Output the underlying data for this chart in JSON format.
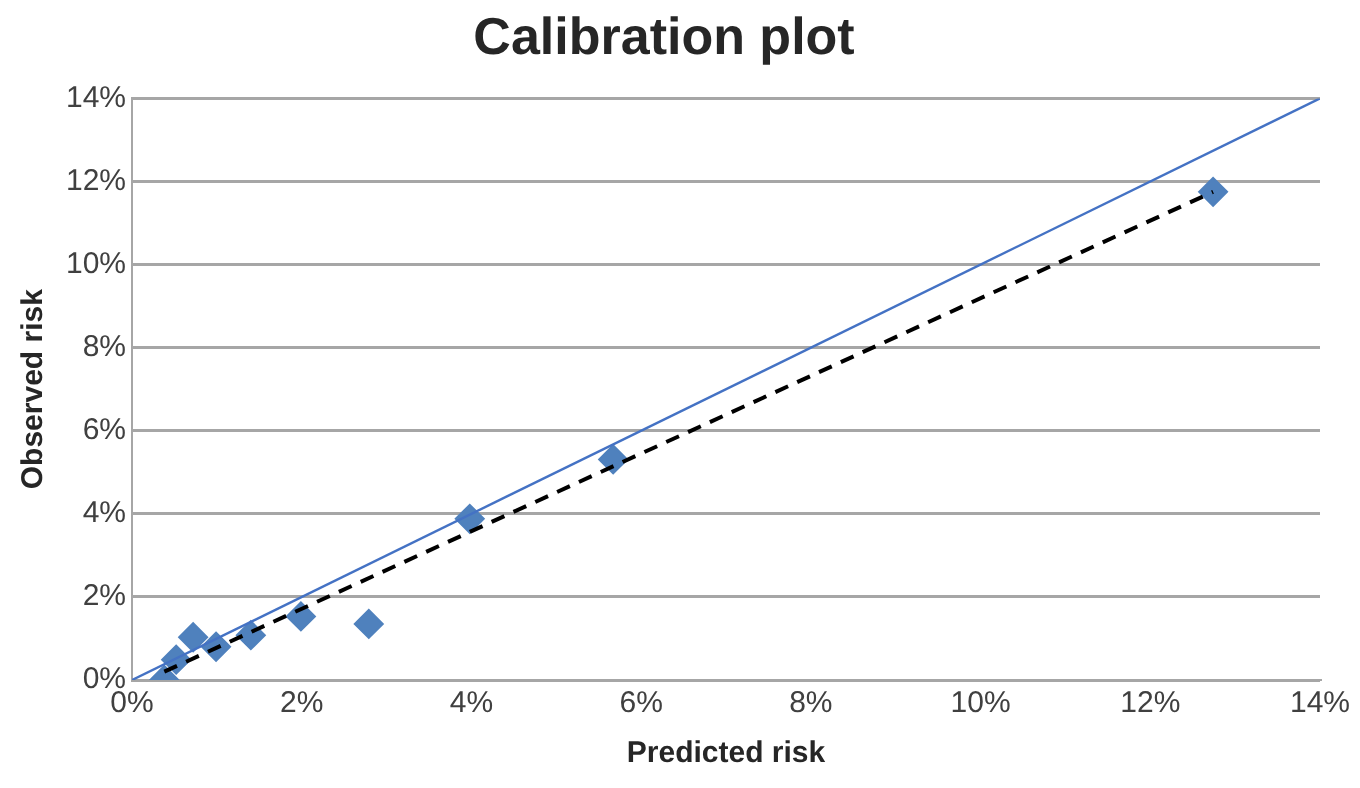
{
  "chart_data": {
    "type": "scatter",
    "title": "Calibration plot",
    "xlabel": "Predicted risk",
    "ylabel": "Observed risk",
    "xlim": [
      0,
      14
    ],
    "ylim": [
      0,
      14
    ],
    "xticks": [
      {
        "value": 0,
        "label": "0%"
      },
      {
        "value": 2,
        "label": "2%"
      },
      {
        "value": 4,
        "label": "4%"
      },
      {
        "value": 6,
        "label": "6%"
      },
      {
        "value": 8,
        "label": "8%"
      },
      {
        "value": 10,
        "label": "10%"
      },
      {
        "value": 12,
        "label": "12%"
      },
      {
        "value": 14,
        "label": "14%"
      }
    ],
    "yticks": [
      {
        "value": 0,
        "label": "0%"
      },
      {
        "value": 2,
        "label": "2%"
      },
      {
        "value": 4,
        "label": "4%"
      },
      {
        "value": 6,
        "label": "6%"
      },
      {
        "value": 8,
        "label": "8%"
      },
      {
        "value": 10,
        "label": "10%"
      },
      {
        "value": 12,
        "label": "12%"
      },
      {
        "value": 14,
        "label": "14%"
      }
    ],
    "grid": "y",
    "legend": false,
    "marker": "diamond",
    "series": [
      {
        "color": "#4f81bd",
        "x": [
          0.38,
          0.52,
          0.72,
          0.99,
          1.4,
          1.99,
          2.79,
          3.98,
          5.67,
          12.74
        ],
        "values": [
          0,
          0.49,
          1.03,
          0.8,
          1.08,
          1.53,
          1.35,
          3.88,
          5.31,
          11.75
        ]
      },
      {
        "type": "line",
        "color": "#000000",
        "line_style": "dashed",
        "marker": "none",
        "x": [
          0.38,
          12.74
        ],
        "values": [
          0.2,
          11.75
        ]
      },
      {
        "type": "line",
        "color": "#4472c4",
        "line_style": "solid",
        "marker": "none",
        "x": [
          0,
          14
        ],
        "values": [
          0,
          14
        ]
      }
    ]
  }
}
